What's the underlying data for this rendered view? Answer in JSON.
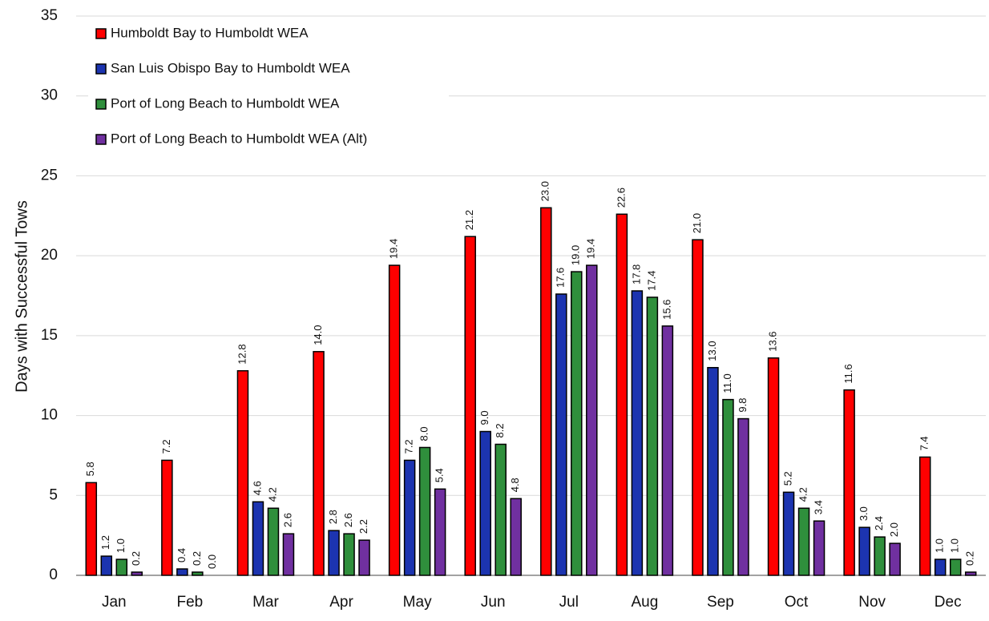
{
  "chart_data": {
    "type": "bar",
    "ylabel": "Days with Successful Tows",
    "categories": [
      "Jan",
      "Feb",
      "Mar",
      "Apr",
      "May",
      "Jun",
      "Jul",
      "Aug",
      "Sep",
      "Oct",
      "Nov",
      "Dec"
    ],
    "series": [
      {
        "name": "Humboldt Bay to Humboldt WEA",
        "color": "#ff0000",
        "values": [
          5.8,
          7.2,
          12.8,
          14.0,
          19.4,
          21.2,
          23.0,
          22.6,
          21.0,
          13.6,
          11.6,
          7.4
        ],
        "value_labels": [
          "5.8",
          "7.2",
          "12.8",
          "14.0",
          "19.4",
          "21.2",
          "23.0",
          "22.6",
          "21.0",
          "13.6",
          "11.6",
          "7.4"
        ]
      },
      {
        "name": "San Luis Obispo Bay to Humboldt WEA",
        "color": "#1c34b0",
        "values": [
          1.2,
          0.4,
          4.6,
          2.8,
          7.2,
          9.0,
          17.6,
          17.8,
          13.0,
          5.2,
          3.0,
          1.0
        ],
        "value_labels": [
          "1.2",
          "0.4",
          "4.6",
          "2.8",
          "7.2",
          "9.0",
          "17.6",
          "17.8",
          "13.0",
          "5.2",
          "3.0",
          "1.0"
        ]
      },
      {
        "name": "Port of Long Beach to Humboldt WEA",
        "color": "#2f8f3c",
        "values": [
          1.0,
          0.2,
          4.2,
          2.6,
          8.0,
          8.2,
          19.0,
          17.4,
          11.0,
          4.2,
          2.4,
          1.0
        ],
        "value_labels": [
          "1.0",
          "0.2",
          "4.2",
          "2.6",
          "8.0",
          "8.2",
          "19.0",
          "17.4",
          "11.0",
          "4.2",
          "2.4",
          "1.0"
        ]
      },
      {
        "name": "Port of Long Beach to Humboldt WEA (Alt)",
        "color": "#7030a0",
        "values": [
          0.2,
          0.0,
          2.6,
          2.2,
          5.4,
          4.8,
          19.4,
          15.6,
          9.8,
          3.4,
          2.0,
          0.2
        ],
        "value_labels": [
          "0.2",
          "0.0",
          "2.6",
          "2.2",
          "5.4",
          "4.8",
          "19.4",
          "15.6",
          "9.8",
          "3.4",
          "2.0",
          "0.2"
        ]
      }
    ],
    "ylim": [
      0,
      35
    ],
    "yticks": [
      0,
      5,
      10,
      15,
      20,
      25,
      30,
      35
    ],
    "grid": true,
    "legend": "upper left"
  }
}
